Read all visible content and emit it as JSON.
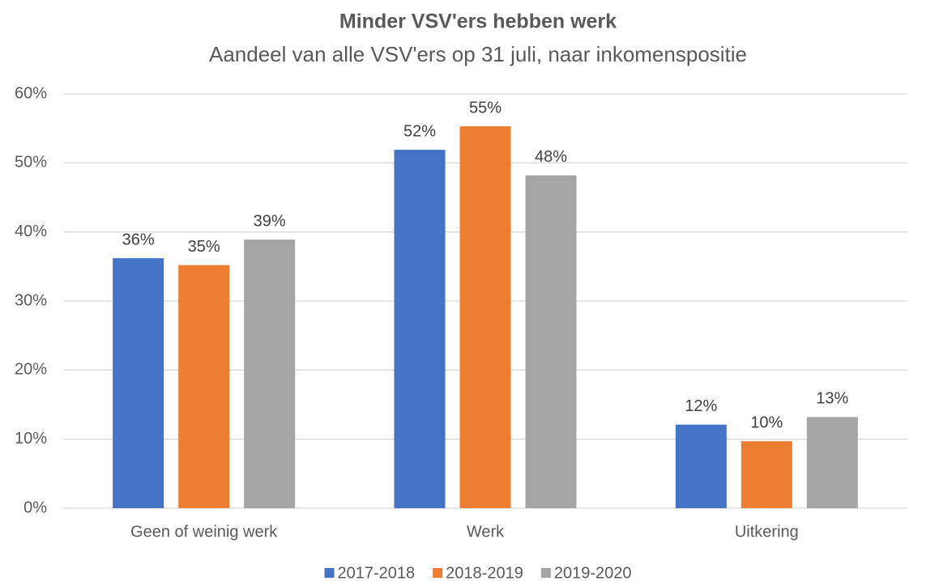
{
  "chart_data": {
    "type": "bar",
    "title": "Minder VSV'ers hebben werk",
    "subtitle": "Aandeel van alle VSV'ers op 31 juli, naar inkomenspositie",
    "categories": [
      "Geen of weinig werk",
      "Werk",
      "Uitkering"
    ],
    "series": [
      {
        "name": "2017-2018",
        "color": "#4472c4",
        "values": [
          36.2,
          51.9,
          12.1
        ],
        "value_labels": [
          "36%",
          "52%",
          "12%"
        ]
      },
      {
        "name": "2018-2019",
        "color": "#ed7d31",
        "values": [
          35.2,
          55.3,
          9.7
        ],
        "value_labels": [
          "35%",
          "55%",
          "10%"
        ]
      },
      {
        "name": "2019-2020",
        "color": "#a5a5a5",
        "values": [
          38.9,
          48.2,
          13.2
        ],
        "value_labels": [
          "39%",
          "48%",
          "13%"
        ]
      }
    ],
    "ylim": [
      0,
      60
    ],
    "yticks": [
      {
        "value": 0,
        "label": "0%"
      },
      {
        "value": 10,
        "label": "10%"
      },
      {
        "value": 20,
        "label": "20%"
      },
      {
        "value": 30,
        "label": "30%"
      },
      {
        "value": 40,
        "label": "40%"
      },
      {
        "value": 50,
        "label": "50%"
      },
      {
        "value": 60,
        "label": "60%"
      }
    ],
    "grid": true,
    "legend": "bottom"
  }
}
